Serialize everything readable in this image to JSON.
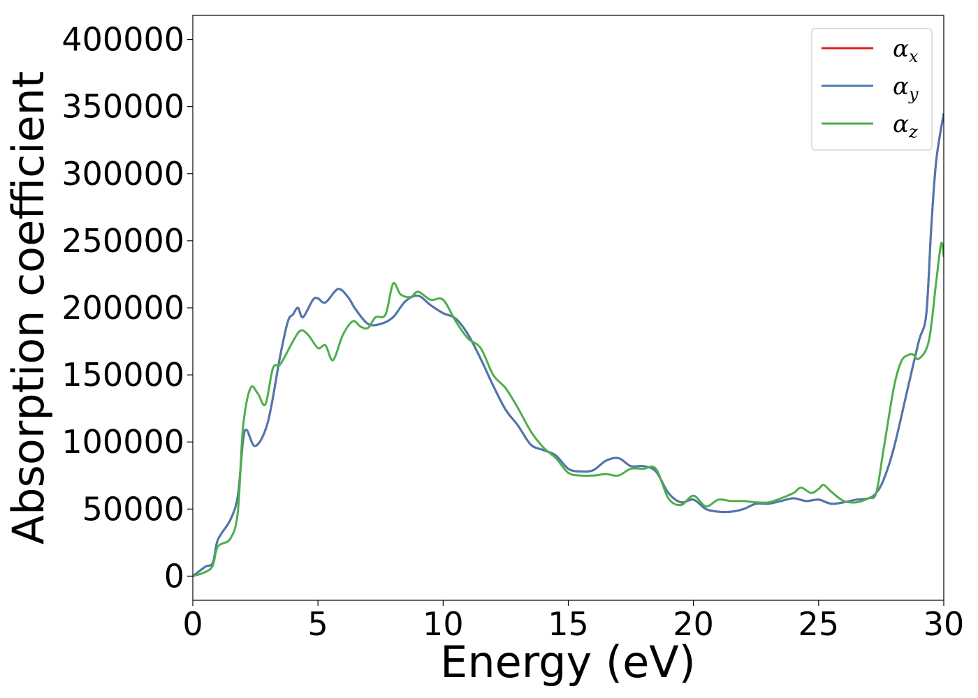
{
  "chart_data": {
    "type": "line",
    "xlabel": "Energy (eV)",
    "ylabel": "Absorption coefficient",
    "xlim": [
      0,
      30
    ],
    "ylim": [
      -18000,
      418000
    ],
    "xticks": [
      "0",
      "5",
      "10",
      "15",
      "20",
      "25",
      "30"
    ],
    "yticks": [
      "0",
      "50000",
      "100000",
      "150000",
      "200000",
      "250000",
      "300000",
      "350000",
      "400000"
    ],
    "grid": false,
    "legend_position": "top-right",
    "series": [
      {
        "name": "α_x",
        "symbol": "α",
        "subscript": "x",
        "color": "#e41a1c",
        "x": [
          0,
          0.5,
          0.8,
          1.0,
          1.5,
          1.8,
          2.0,
          2.15,
          2.5,
          3.0,
          3.5,
          3.8,
          4.0,
          4.2,
          4.4,
          4.8,
          5.0,
          5.3,
          5.8,
          6.2,
          6.5,
          7.0,
          7.5,
          8.0,
          8.5,
          9.0,
          9.5,
          10.0,
          10.5,
          11.0,
          11.5,
          12.0,
          12.5,
          13.0,
          13.5,
          14.0,
          14.5,
          15.0,
          15.5,
          16.0,
          16.5,
          17.0,
          17.5,
          18.0,
          18.5,
          19.0,
          19.5,
          20.0,
          20.5,
          21.0,
          21.5,
          22.0,
          22.5,
          23.0,
          23.5,
          24.0,
          24.5,
          25.0,
          25.5,
          26.0,
          26.5,
          27.0,
          27.3,
          27.6,
          28.0,
          28.5,
          29.0,
          29.3,
          29.5,
          29.7,
          30.0
        ],
        "values": [
          0,
          7000,
          10000,
          27000,
          42000,
          60000,
          100000,
          109000,
          97000,
          115000,
          165000,
          190000,
          195000,
          200000,
          193000,
          206000,
          207000,
          204000,
          214000,
          208000,
          199000,
          188000,
          188000,
          193000,
          205000,
          209000,
          202000,
          196000,
          192000,
          180000,
          162000,
          142000,
          124000,
          112000,
          98000,
          94000,
          90000,
          80000,
          78000,
          79000,
          86000,
          88000,
          82000,
          82000,
          78000,
          62000,
          55000,
          57000,
          50000,
          48000,
          48000,
          50000,
          54000,
          54000,
          56000,
          58000,
          56000,
          57000,
          54000,
          55000,
          57000,
          58000,
          62000,
          72000,
          95000,
          135000,
          175000,
          195000,
          260000,
          310000,
          345000
        ]
      },
      {
        "name": "α_y",
        "symbol": "α",
        "subscript": "y",
        "color": "#4a78b0",
        "x": [
          0,
          0.5,
          0.8,
          1.0,
          1.5,
          1.8,
          2.0,
          2.15,
          2.5,
          3.0,
          3.5,
          3.8,
          4.0,
          4.2,
          4.4,
          4.8,
          5.0,
          5.3,
          5.8,
          6.2,
          6.5,
          7.0,
          7.5,
          8.0,
          8.5,
          9.0,
          9.5,
          10.0,
          10.5,
          11.0,
          11.5,
          12.0,
          12.5,
          13.0,
          13.5,
          14.0,
          14.5,
          15.0,
          15.5,
          16.0,
          16.5,
          17.0,
          17.5,
          18.0,
          18.5,
          19.0,
          19.5,
          20.0,
          20.5,
          21.0,
          21.5,
          22.0,
          22.5,
          23.0,
          23.5,
          24.0,
          24.5,
          25.0,
          25.5,
          26.0,
          26.5,
          27.0,
          27.3,
          27.6,
          28.0,
          28.5,
          29.0,
          29.3,
          29.5,
          29.7,
          30.0
        ],
        "values": [
          0,
          7000,
          10000,
          27000,
          42000,
          60000,
          100000,
          109000,
          97000,
          115000,
          165000,
          190000,
          195000,
          200000,
          193000,
          206000,
          207000,
          204000,
          214000,
          208000,
          199000,
          188000,
          188000,
          193000,
          205000,
          209000,
          202000,
          196000,
          192000,
          180000,
          162000,
          142000,
          124000,
          112000,
          98000,
          94000,
          90000,
          80000,
          78000,
          79000,
          86000,
          88000,
          82000,
          82000,
          78000,
          62000,
          55000,
          57000,
          50000,
          48000,
          48000,
          50000,
          54000,
          54000,
          56000,
          58000,
          56000,
          57000,
          54000,
          55000,
          57000,
          58000,
          62000,
          72000,
          95000,
          135000,
          175000,
          195000,
          260000,
          310000,
          345000
        ]
      },
      {
        "name": "α_z",
        "symbol": "α",
        "subscript": "z",
        "color": "#4daf4a",
        "x": [
          0,
          0.5,
          0.8,
          1.0,
          1.5,
          1.8,
          2.0,
          2.3,
          2.6,
          2.9,
          3.2,
          3.5,
          4.0,
          4.3,
          4.6,
          5.0,
          5.3,
          5.6,
          6.0,
          6.4,
          6.7,
          7.0,
          7.3,
          7.7,
          8.0,
          8.3,
          8.7,
          9.0,
          9.5,
          10.0,
          10.5,
          11.0,
          11.5,
          12.0,
          12.5,
          13.0,
          13.5,
          14.0,
          14.5,
          15.0,
          15.5,
          16.0,
          16.5,
          17.0,
          17.5,
          18.0,
          18.5,
          19.0,
          19.5,
          20.0,
          20.5,
          21.0,
          21.5,
          22.0,
          22.5,
          23.0,
          23.5,
          24.0,
          24.3,
          24.7,
          25.0,
          25.2,
          25.5,
          26.0,
          26.5,
          27.0,
          27.3,
          27.6,
          28.0,
          28.3,
          28.6,
          28.8,
          29.0,
          29.4,
          29.7,
          29.9,
          30.0
        ],
        "values": [
          0,
          3000,
          8000,
          22000,
          28000,
          48000,
          110000,
          140000,
          136000,
          128000,
          155000,
          158000,
          175000,
          183000,
          180000,
          170000,
          172000,
          161000,
          180000,
          190000,
          186000,
          185000,
          193000,
          195000,
          218000,
          210000,
          208000,
          212000,
          206000,
          206000,
          190000,
          177000,
          170000,
          150000,
          140000,
          125000,
          108000,
          96000,
          88000,
          77000,
          75000,
          75000,
          76000,
          75000,
          80000,
          80000,
          80000,
          58000,
          53000,
          60000,
          52000,
          57000,
          56000,
          56000,
          55000,
          55000,
          58000,
          62000,
          66000,
          62000,
          65000,
          68000,
          63000,
          56000,
          55000,
          58000,
          62000,
          95000,
          140000,
          160000,
          165000,
          165000,
          162000,
          175000,
          220000,
          248000,
          238000
        ]
      }
    ]
  }
}
